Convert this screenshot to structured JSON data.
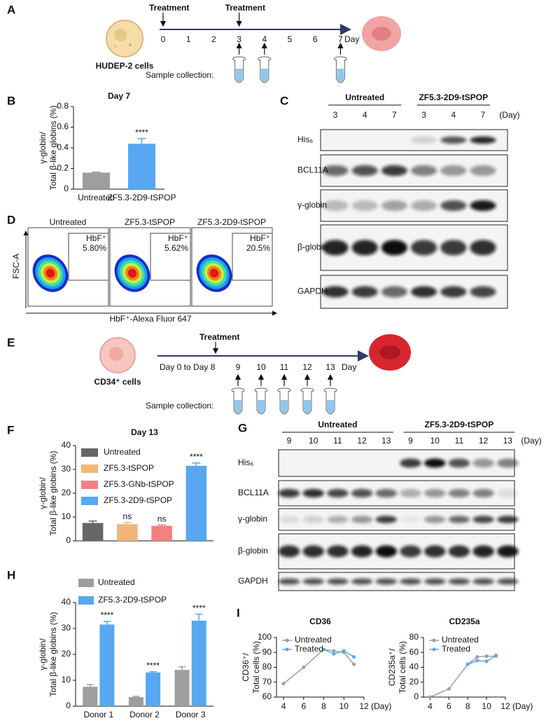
{
  "panel_labels": [
    "A",
    "B",
    "C",
    "D",
    "E",
    "F",
    "G",
    "H",
    "I"
  ],
  "timeline_a": {
    "treatment_labels": [
      "Treatment",
      "Treatment"
    ],
    "days": [
      0,
      1,
      2,
      3,
      4,
      5,
      6,
      7
    ],
    "day_unit": "Day",
    "cell_label": "HUDEP-2 cells",
    "sample_label": "Sample collection:"
  },
  "timeline_e": {
    "treatment_label": "Treatment",
    "range_label": "Day 0 to Day 8",
    "days": [
      9,
      10,
      11,
      12,
      13
    ],
    "day_unit": "Day",
    "cell_label": "CD34⁺ cells",
    "sample_label": "Sample collection:"
  },
  "blot_c": {
    "groups": [
      "Untreated",
      "ZF5.3-2D9-tSPOP"
    ],
    "lanes": [
      3,
      4,
      7,
      3,
      4,
      7
    ],
    "unit": "(Day)",
    "rows": [
      "His₆",
      "BCL11A",
      "γ-globin",
      "β-globin",
      "GAPDH"
    ]
  },
  "blot_g": {
    "groups": [
      "Untreated",
      "ZF5.3-2D9-tSPOP"
    ],
    "lanes": [
      9,
      10,
      11,
      12,
      13,
      9,
      10,
      11,
      12,
      13
    ],
    "unit": "(Day)",
    "rows": [
      "His₆",
      "BCL11A",
      "γ-globin",
      "β-globin",
      "GAPDH"
    ]
  },
  "flow_d": {
    "plots": [
      {
        "title": "Untreated",
        "gate": "HbF⁺",
        "percent": "5.80%"
      },
      {
        "title": "ZF5.3-tSPOP",
        "gate": "HbF⁺",
        "percent": "5.62%"
      },
      {
        "title": "ZF5.3-2D9-tSPOP",
        "gate": "HbF⁺",
        "percent": "20.5%"
      }
    ],
    "y_axis": "FSC-A",
    "x_axis": "HbF⁺-Alexa Fluor 647"
  },
  "chart_data": [
    {
      "type": "bar",
      "title": "Day 7",
      "ylabel": [
        "γ-globin/",
        "Total β-like globins (%)"
      ],
      "categories": [
        "Untreated",
        "ZF5.3-2D9-tSPOP"
      ],
      "values": [
        0.16,
        0.44
      ],
      "errors": [
        0.005,
        0.05
      ],
      "colors": [
        "#9e9e9e",
        "#57a8f0"
      ],
      "annotations": [
        null,
        "****"
      ],
      "ylim": [
        0,
        0.8
      ],
      "yticks": [
        0,
        0.2,
        0.4,
        0.6,
        0.8
      ]
    },
    {
      "type": "bar",
      "title": "Day 13",
      "ylabel": [
        "γ-globin/",
        "Total β-like globins (%)"
      ],
      "categories": [
        "Untreated",
        "ZF5.3-tSPOP",
        "ZF5.3-GNb-tSPOP",
        "ZF5.3-2D9-tSPOP"
      ],
      "values": [
        7.5,
        7,
        6.3,
        31.5
      ],
      "errors": [
        0.8,
        0.7,
        0.4,
        1.2
      ],
      "colors": [
        "#666666",
        "#f2b57a",
        "#f48080",
        "#57a8f0"
      ],
      "annotations": [
        null,
        "ns",
        "ns",
        "****"
      ],
      "legend": "top-left",
      "ylim": [
        0,
        40
      ],
      "yticks": [
        0,
        10,
        20,
        30,
        40
      ]
    },
    {
      "type": "grouped_bar",
      "ylabel": [
        "γ-globin/",
        "Total β-like globins (%)"
      ],
      "categories": [
        "Donor 1",
        "Donor 2",
        "Donor 3"
      ],
      "series": [
        {
          "name": "Untreated",
          "color": "#9e9e9e",
          "values": [
            7.5,
            3.5,
            14
          ],
          "errors": [
            0.8,
            0.3,
            1.2
          ],
          "annotations": [
            null,
            null,
            null
          ]
        },
        {
          "name": "ZF5.3-2D9-tSPOP",
          "color": "#57a8f0",
          "values": [
            31.5,
            13,
            33
          ],
          "errors": [
            1.2,
            0.3,
            2.5
          ],
          "annotations": [
            "****",
            "****",
            "****"
          ]
        }
      ],
      "legend": "top-left",
      "ylim": [
        0,
        40
      ],
      "yticks": [
        0,
        10,
        20,
        30,
        40
      ]
    },
    {
      "type": "line",
      "title": "CD36",
      "ylabel": [
        "CD36⁺/",
        "Total cells (%)"
      ],
      "xlabel": "(Day)",
      "x": [
        4,
        6,
        8,
        9,
        10,
        11
      ],
      "series": [
        {
          "name": "Untreated",
          "color": "#9e9e9e",
          "values": [
            69,
            80,
            92,
            91,
            90,
            82
          ]
        },
        {
          "name": "Treated",
          "color": "#57a8f0",
          "values": [
            null,
            null,
            92,
            89,
            91,
            87
          ]
        }
      ],
      "legend": "top-left",
      "xlim": [
        3.3,
        12
      ],
      "xticks": [
        4,
        6,
        8,
        10,
        12
      ],
      "ylim": [
        60,
        100
      ],
      "yticks": [
        60,
        70,
        80,
        90,
        100
      ]
    },
    {
      "type": "line",
      "title": "CD235a",
      "ylabel": [
        "CD235a⁺/",
        "Total cells (%)"
      ],
      "xlabel": "(Day)",
      "x": [
        4,
        6,
        8,
        9,
        10,
        11
      ],
      "series": [
        {
          "name": "Untreated",
          "color": "#9e9e9e",
          "values": [
            0,
            11,
            44,
            54,
            55,
            55
          ]
        },
        {
          "name": "Treated",
          "color": "#57a8f0",
          "values": [
            null,
            null,
            44,
            49,
            48,
            56
          ]
        }
      ],
      "legend": "top-left",
      "xlim": [
        3.3,
        12
      ],
      "xticks": [
        4,
        6,
        8,
        10,
        12
      ],
      "ylim": [
        0,
        80
      ],
      "yticks": [
        0,
        20,
        40,
        60,
        80
      ]
    }
  ]
}
